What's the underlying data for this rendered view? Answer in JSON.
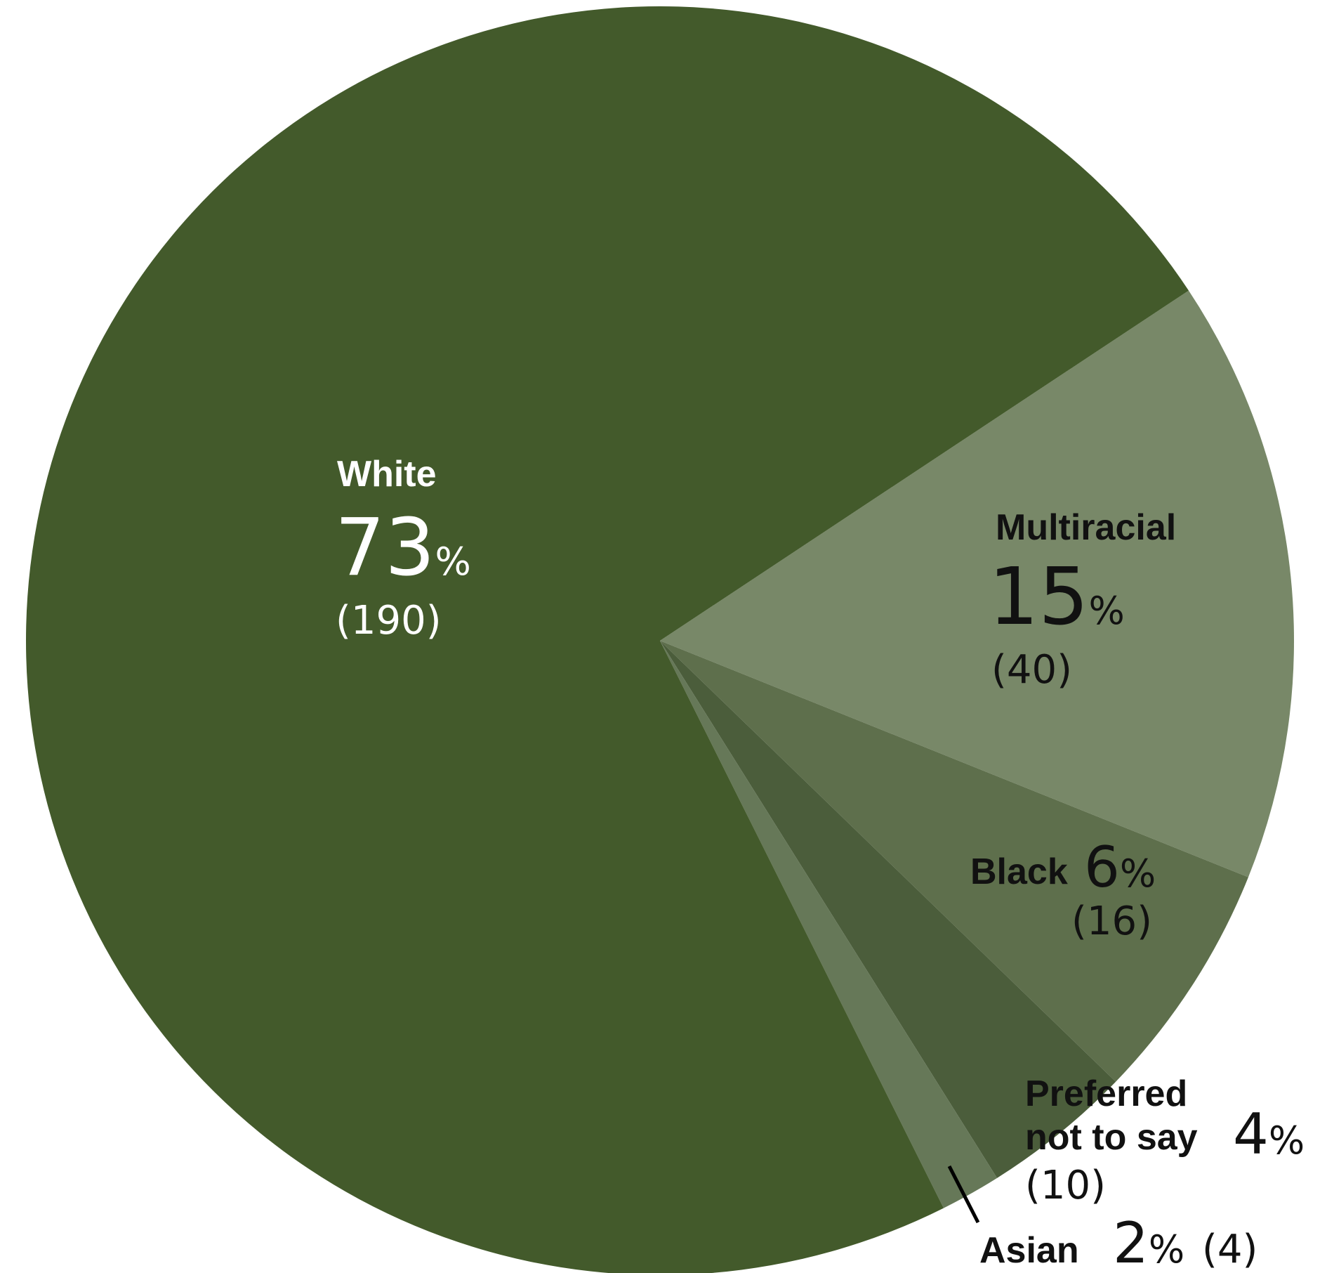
{
  "chart_data": {
    "type": "pie",
    "title": "",
    "slices": [
      {
        "label": "White",
        "percent": 73,
        "percent_label": "73",
        "count": 190,
        "count_label": "(190)",
        "color": "#435a2b"
      },
      {
        "label": "Multiracial",
        "percent": 15,
        "percent_label": "15",
        "count": 40,
        "count_label": "(40)",
        "color": "#788868"
      },
      {
        "label": "Black",
        "percent": 6,
        "percent_label": "6",
        "count": 16,
        "count_label": "(16)",
        "color": "#5e6f4c"
      },
      {
        "label_lines": [
          "Preferred",
          "not to say"
        ],
        "percent": 4,
        "percent_label": "4",
        "count": 10,
        "count_label": "(10)",
        "color": "#4b5d3b"
      },
      {
        "label": "Asian",
        "percent": 2,
        "percent_label": "2",
        "count": 4,
        "count_label": "(4)",
        "color": "#667858"
      }
    ],
    "percent_sign": "%"
  }
}
